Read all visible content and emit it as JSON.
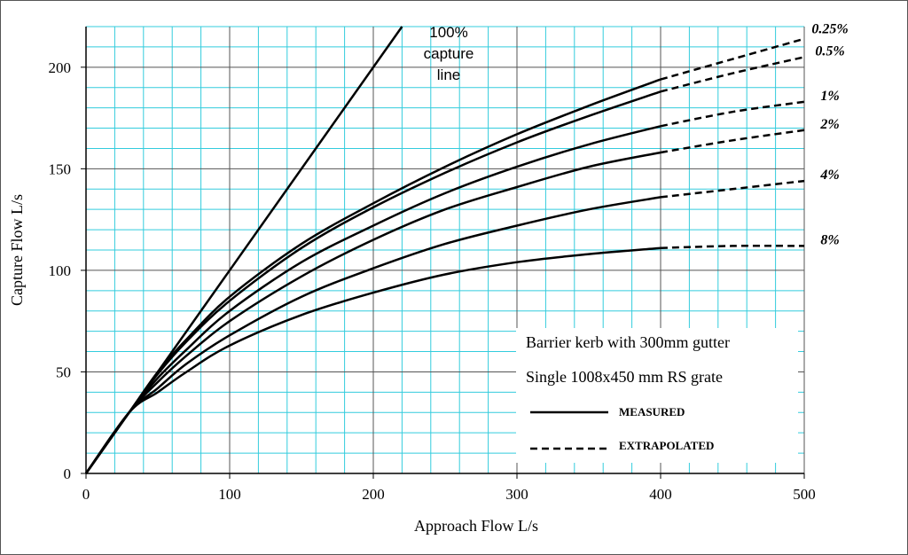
{
  "chart_data": {
    "type": "line",
    "xlabel": "Approach Flow L/s",
    "ylabel": "Capture Flow L/s",
    "xlim": [
      0,
      500
    ],
    "ylim": [
      0,
      220
    ],
    "x_ticks": [
      "0",
      "100",
      "200",
      "300",
      "400",
      "500"
    ],
    "y_ticks": [
      "0",
      "50",
      "100",
      "150",
      "200"
    ],
    "grid": true,
    "minor_grid": true,
    "colors": {
      "grid": "#33ccdd",
      "major_grid": "#555555",
      "line": "#000000"
    },
    "capture_line": {
      "label_lines": [
        "100%",
        "capture",
        "line"
      ],
      "points": [
        [
          0,
          0
        ],
        [
          220,
          220
        ]
      ]
    },
    "series": [
      {
        "name": "0.25%",
        "measured": [
          [
            0,
            0
          ],
          [
            30,
            30
          ],
          [
            50,
            50
          ],
          [
            70,
            66
          ],
          [
            100,
            87
          ],
          [
            150,
            113
          ],
          [
            200,
            133
          ],
          [
            250,
            151
          ],
          [
            300,
            167
          ],
          [
            350,
            181
          ],
          [
            400,
            194
          ]
        ],
        "extrapolated": [
          [
            400,
            194
          ],
          [
            450,
            204
          ],
          [
            500,
            214
          ]
        ]
      },
      {
        "name": "0.5%",
        "measured": [
          [
            0,
            0
          ],
          [
            30,
            30
          ],
          [
            50,
            49
          ],
          [
            70,
            65
          ],
          [
            100,
            85
          ],
          [
            150,
            111
          ],
          [
            200,
            131
          ],
          [
            250,
            148
          ],
          [
            300,
            163
          ],
          [
            350,
            176
          ],
          [
            400,
            188
          ]
        ],
        "extrapolated": [
          [
            400,
            188
          ],
          [
            450,
            197
          ],
          [
            500,
            205
          ]
        ]
      },
      {
        "name": "1%",
        "measured": [
          [
            0,
            0
          ],
          [
            30,
            30
          ],
          [
            50,
            47
          ],
          [
            70,
            61
          ],
          [
            100,
            80
          ],
          [
            150,
            104
          ],
          [
            200,
            122
          ],
          [
            250,
            138
          ],
          [
            300,
            151
          ],
          [
            350,
            162
          ],
          [
            400,
            171
          ]
        ],
        "extrapolated": [
          [
            400,
            171
          ],
          [
            450,
            178
          ],
          [
            500,
            183
          ]
        ]
      },
      {
        "name": "2%",
        "measured": [
          [
            0,
            0
          ],
          [
            30,
            30
          ],
          [
            50,
            45
          ],
          [
            70,
            58
          ],
          [
            100,
            75
          ],
          [
            150,
            97
          ],
          [
            200,
            115
          ],
          [
            250,
            130
          ],
          [
            300,
            141
          ],
          [
            350,
            151
          ],
          [
            400,
            158
          ]
        ],
        "extrapolated": [
          [
            400,
            158
          ],
          [
            450,
            164
          ],
          [
            500,
            169
          ]
        ]
      },
      {
        "name": "4%",
        "measured": [
          [
            0,
            0
          ],
          [
            30,
            30
          ],
          [
            50,
            42
          ],
          [
            70,
            54
          ],
          [
            100,
            68
          ],
          [
            150,
            87
          ],
          [
            200,
            101
          ],
          [
            250,
            113
          ],
          [
            300,
            122
          ],
          [
            350,
            130
          ],
          [
            400,
            136
          ]
        ],
        "extrapolated": [
          [
            400,
            136
          ],
          [
            450,
            140
          ],
          [
            500,
            144
          ]
        ]
      },
      {
        "name": "8%",
        "measured": [
          [
            0,
            0
          ],
          [
            30,
            30
          ],
          [
            50,
            40
          ],
          [
            70,
            50
          ],
          [
            100,
            63
          ],
          [
            150,
            78
          ],
          [
            200,
            89
          ],
          [
            250,
            98
          ],
          [
            300,
            104
          ],
          [
            350,
            108
          ],
          [
            400,
            111
          ]
        ],
        "extrapolated": [
          [
            400,
            111
          ],
          [
            450,
            112
          ],
          [
            500,
            112
          ]
        ]
      }
    ],
    "annotations": {
      "title_line1": "Barrier kerb with 300mm gutter",
      "title_line2": "Single 1008x450 mm RS grate",
      "legend_measured": "MEASURED",
      "legend_extrapolated": "EXTRAPOLATED"
    }
  }
}
